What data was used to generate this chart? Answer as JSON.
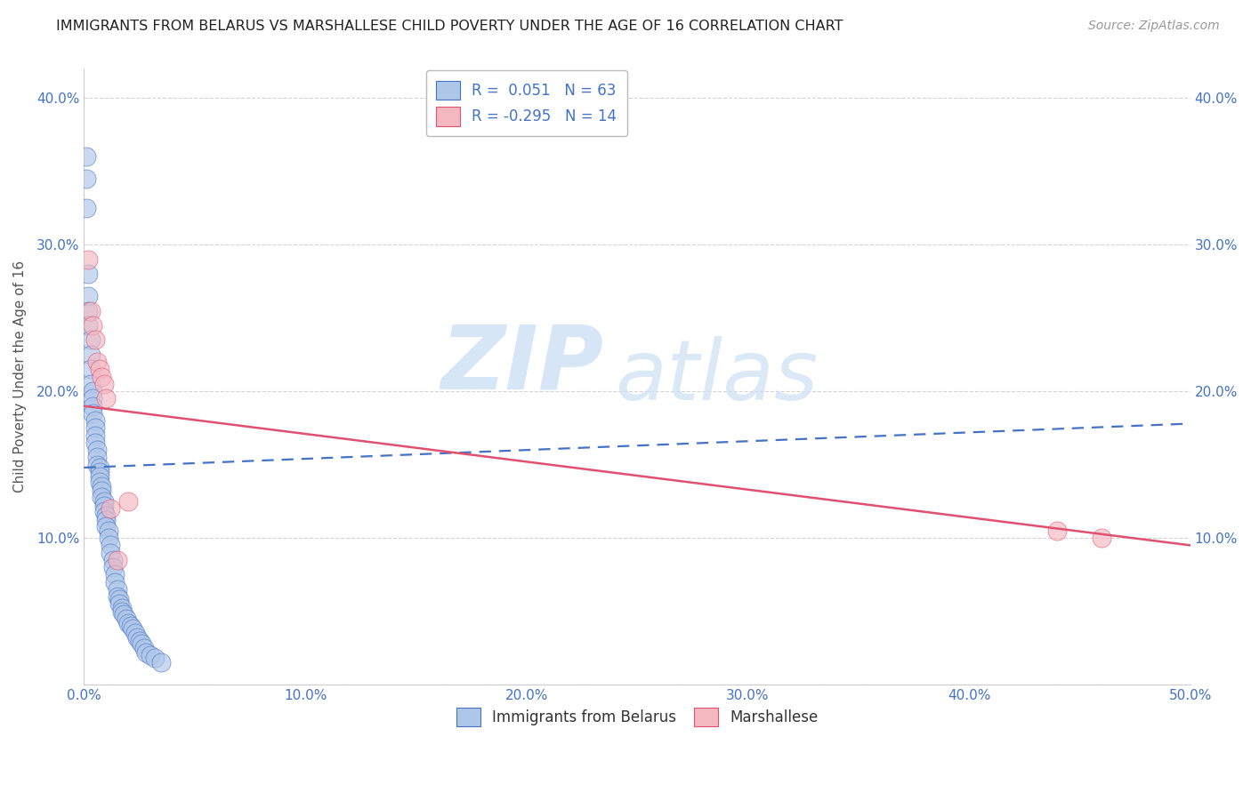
{
  "title": "IMMIGRANTS FROM BELARUS VS MARSHALLESE CHILD POVERTY UNDER THE AGE OF 16 CORRELATION CHART",
  "source": "Source: ZipAtlas.com",
  "ylabel": "Child Poverty Under the Age of 16",
  "xlim": [
    0.0,
    0.5
  ],
  "ylim": [
    0.0,
    0.42
  ],
  "xtick_labels": [
    "0.0%",
    "10.0%",
    "20.0%",
    "30.0%",
    "40.0%",
    "50.0%"
  ],
  "xtick_vals": [
    0.0,
    0.1,
    0.2,
    0.3,
    0.4,
    0.5
  ],
  "ytick_vals_left": [
    0.0,
    0.1,
    0.2,
    0.3,
    0.4
  ],
  "ytick_labels_left": [
    "",
    "10.0%",
    "20.0%",
    "30.0%",
    "40.0%"
  ],
  "ytick_vals_right": [
    0.1,
    0.2,
    0.3,
    0.4
  ],
  "ytick_labels_right": [
    "10.0%",
    "20.0%",
    "30.0%",
    "40.0%"
  ],
  "legend_line1": "R =  0.051   N = 63",
  "legend_line2": "R = -0.295   N = 14",
  "blue_scatter_x": [
    0.001,
    0.001,
    0.001,
    0.002,
    0.002,
    0.002,
    0.002,
    0.003,
    0.003,
    0.003,
    0.003,
    0.004,
    0.004,
    0.004,
    0.004,
    0.005,
    0.005,
    0.005,
    0.005,
    0.006,
    0.006,
    0.006,
    0.007,
    0.007,
    0.007,
    0.007,
    0.008,
    0.008,
    0.008,
    0.009,
    0.009,
    0.009,
    0.01,
    0.01,
    0.01,
    0.011,
    0.011,
    0.012,
    0.012,
    0.013,
    0.013,
    0.014,
    0.014,
    0.015,
    0.015,
    0.016,
    0.016,
    0.017,
    0.017,
    0.018,
    0.019,
    0.02,
    0.021,
    0.022,
    0.023,
    0.024,
    0.025,
    0.026,
    0.027,
    0.028,
    0.03,
    0.032,
    0.035
  ],
  "blue_scatter_y": [
    0.36,
    0.345,
    0.325,
    0.28,
    0.265,
    0.255,
    0.245,
    0.235,
    0.225,
    0.215,
    0.205,
    0.2,
    0.195,
    0.19,
    0.185,
    0.18,
    0.175,
    0.17,
    0.165,
    0.16,
    0.155,
    0.15,
    0.148,
    0.145,
    0.142,
    0.138,
    0.135,
    0.132,
    0.128,
    0.125,
    0.122,
    0.118,
    0.115,
    0.112,
    0.108,
    0.105,
    0.1,
    0.095,
    0.09,
    0.085,
    0.08,
    0.075,
    0.07,
    0.065,
    0.06,
    0.058,
    0.055,
    0.052,
    0.05,
    0.048,
    0.045,
    0.042,
    0.04,
    0.038,
    0.035,
    0.032,
    0.03,
    0.028,
    0.025,
    0.022,
    0.02,
    0.018,
    0.015
  ],
  "pink_scatter_x": [
    0.002,
    0.003,
    0.004,
    0.005,
    0.006,
    0.007,
    0.008,
    0.009,
    0.01,
    0.012,
    0.015,
    0.02,
    0.44,
    0.46
  ],
  "pink_scatter_y": [
    0.29,
    0.255,
    0.245,
    0.235,
    0.22,
    0.215,
    0.21,
    0.205,
    0.195,
    0.12,
    0.085,
    0.125,
    0.105,
    0.1
  ],
  "blue_line_x": [
    0.0,
    0.5
  ],
  "blue_line_y": [
    0.148,
    0.178
  ],
  "pink_line_x": [
    0.0,
    0.5
  ],
  "pink_line_y": [
    0.19,
    0.095
  ],
  "background_color": "#ffffff",
  "scatter_blue_color": "#aec6e8",
  "scatter_pink_color": "#f4b8c1",
  "line_blue_color": "#4472c4",
  "line_pink_color": "#e05070",
  "grid_color": "#d0d0d0",
  "title_color": "#222222",
  "axis_label_color": "#555555",
  "tick_color": "#4472c4",
  "legend_text_color": "#4472c4",
  "bottom_legend": [
    "Immigrants from Belarus",
    "Marshallese"
  ],
  "watermark_color": "#cce0f5",
  "figsize": [
    14.06,
    8.92
  ],
  "dpi": 100
}
